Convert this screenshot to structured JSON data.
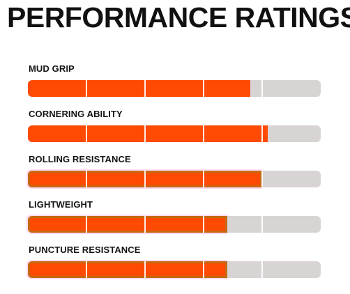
{
  "title": "PERFORMANCE RATINGS",
  "colors": {
    "fill": "#ff4a04",
    "track": "#d9d4d4",
    "divider": "#ffffff",
    "edge_tint": "#c46a10",
    "glow": "#ffc4ec"
  },
  "segments": 5,
  "ratings": [
    {
      "label": "MUD GRIP",
      "value_fraction": 0.76,
      "tinted": false
    },
    {
      "label": "CORNERING ABILITY",
      "value_fraction": 0.82,
      "tinted": false
    },
    {
      "label": "ROLLING RESISTANCE",
      "value_fraction": 0.8,
      "tinted": true
    },
    {
      "label": "LIGHTWEIGHT",
      "value_fraction": 0.68,
      "tinted": true
    },
    {
      "label": "PUNCTURE RESISTANCE",
      "value_fraction": 0.68,
      "tinted": true
    }
  ]
}
